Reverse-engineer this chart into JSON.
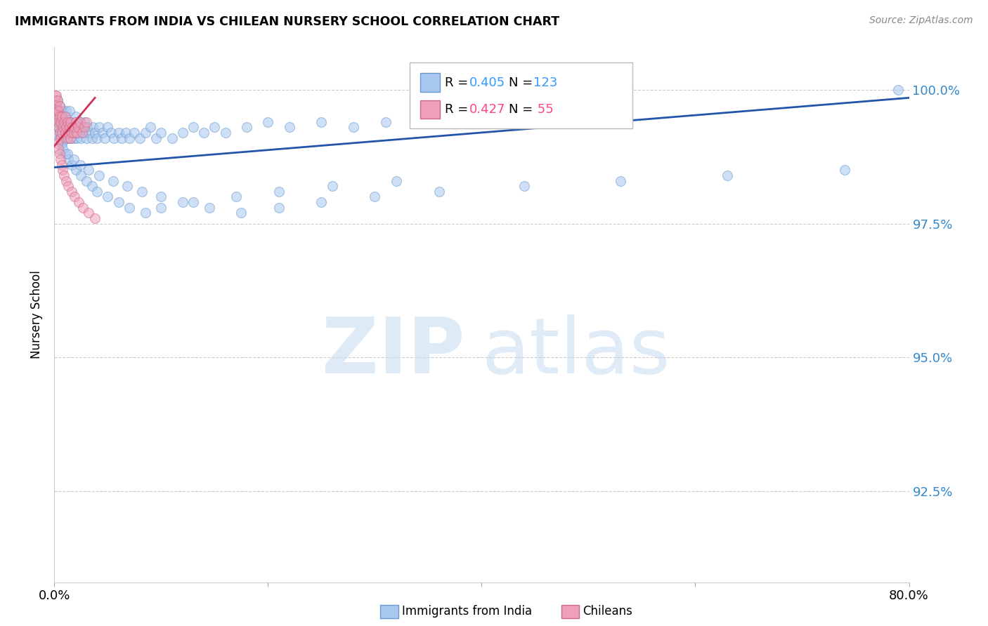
{
  "title": "IMMIGRANTS FROM INDIA VS CHILEAN NURSERY SCHOOL CORRELATION CHART",
  "source": "Source: ZipAtlas.com",
  "ylabel": "Nursery School",
  "ytick_labels": [
    "100.0%",
    "97.5%",
    "95.0%",
    "92.5%"
  ],
  "ytick_values": [
    1.0,
    0.975,
    0.95,
    0.925
  ],
  "xlim": [
    0.0,
    0.8
  ],
  "ylim": [
    0.908,
    1.008
  ],
  "blue_color": "#a8c8f0",
  "pink_color": "#f0a0b8",
  "blue_edge_color": "#6699cc",
  "pink_edge_color": "#cc6688",
  "blue_line_color": "#2255aa",
  "pink_line_color": "#cc3355",
  "legend_text_blue": "#3399ff",
  "legend_text_pink": "#ff4488",
  "background_color": "#ffffff",
  "grid_color": "#cccccc",
  "right_axis_label_color": "#3388cc",
  "scatter_alpha": 0.55,
  "scatter_size": 100,
  "blue_x": [
    0.001,
    0.001,
    0.002,
    0.002,
    0.003,
    0.003,
    0.003,
    0.004,
    0.004,
    0.005,
    0.005,
    0.005,
    0.006,
    0.006,
    0.007,
    0.007,
    0.008,
    0.008,
    0.009,
    0.009,
    0.01,
    0.01,
    0.011,
    0.011,
    0.012,
    0.012,
    0.013,
    0.014,
    0.014,
    0.015,
    0.015,
    0.016,
    0.017,
    0.018,
    0.019,
    0.02,
    0.02,
    0.021,
    0.022,
    0.023,
    0.024,
    0.025,
    0.026,
    0.027,
    0.028,
    0.03,
    0.031,
    0.033,
    0.035,
    0.036,
    0.038,
    0.04,
    0.042,
    0.045,
    0.047,
    0.05,
    0.053,
    0.056,
    0.06,
    0.063,
    0.067,
    0.07,
    0.075,
    0.08,
    0.085,
    0.09,
    0.095,
    0.1,
    0.11,
    0.12,
    0.13,
    0.14,
    0.15,
    0.16,
    0.18,
    0.2,
    0.22,
    0.25,
    0.28,
    0.31,
    0.34,
    0.37,
    0.4,
    0.007,
    0.01,
    0.013,
    0.016,
    0.02,
    0.025,
    0.03,
    0.035,
    0.04,
    0.05,
    0.06,
    0.07,
    0.085,
    0.1,
    0.13,
    0.17,
    0.21,
    0.26,
    0.32,
    0.008,
    0.012,
    0.018,
    0.024,
    0.032,
    0.042,
    0.055,
    0.068,
    0.082,
    0.1,
    0.12,
    0.145,
    0.175,
    0.21,
    0.25,
    0.3,
    0.36,
    0.44,
    0.53,
    0.63,
    0.74,
    0.79
  ],
  "blue_y": [
    0.993,
    0.996,
    0.994,
    0.997,
    0.992,
    0.995,
    0.998,
    0.993,
    0.996,
    0.991,
    0.994,
    0.997,
    0.992,
    0.995,
    0.99,
    0.994,
    0.993,
    0.996,
    0.991,
    0.994,
    0.992,
    0.995,
    0.993,
    0.996,
    0.991,
    0.994,
    0.992,
    0.993,
    0.996,
    0.991,
    0.994,
    0.992,
    0.993,
    0.991,
    0.994,
    0.992,
    0.995,
    0.991,
    0.993,
    0.992,
    0.994,
    0.991,
    0.993,
    0.992,
    0.994,
    0.991,
    0.993,
    0.992,
    0.991,
    0.993,
    0.992,
    0.991,
    0.993,
    0.992,
    0.991,
    0.993,
    0.992,
    0.991,
    0.992,
    0.991,
    0.992,
    0.991,
    0.992,
    0.991,
    0.992,
    0.993,
    0.991,
    0.992,
    0.991,
    0.992,
    0.993,
    0.992,
    0.993,
    0.992,
    0.993,
    0.994,
    0.993,
    0.994,
    0.993,
    0.994,
    0.995,
    0.994,
    0.995,
    0.99,
    0.988,
    0.987,
    0.986,
    0.985,
    0.984,
    0.983,
    0.982,
    0.981,
    0.98,
    0.979,
    0.978,
    0.977,
    0.978,
    0.979,
    0.98,
    0.981,
    0.982,
    0.983,
    0.989,
    0.988,
    0.987,
    0.986,
    0.985,
    0.984,
    0.983,
    0.982,
    0.981,
    0.98,
    0.979,
    0.978,
    0.977,
    0.978,
    0.979,
    0.98,
    0.981,
    0.982,
    0.983,
    0.984,
    0.985,
    1.0
  ],
  "pink_x": [
    0.001,
    0.001,
    0.001,
    0.002,
    0.002,
    0.002,
    0.003,
    0.003,
    0.003,
    0.004,
    0.004,
    0.005,
    0.005,
    0.005,
    0.006,
    0.006,
    0.007,
    0.007,
    0.008,
    0.009,
    0.01,
    0.01,
    0.011,
    0.012,
    0.012,
    0.013,
    0.014,
    0.015,
    0.015,
    0.016,
    0.017,
    0.018,
    0.019,
    0.02,
    0.021,
    0.022,
    0.024,
    0.026,
    0.028,
    0.03,
    0.003,
    0.004,
    0.005,
    0.006,
    0.007,
    0.008,
    0.009,
    0.011,
    0.013,
    0.016,
    0.019,
    0.023,
    0.027,
    0.032,
    0.038
  ],
  "pink_y": [
    0.996,
    0.998,
    0.999,
    0.995,
    0.997,
    0.999,
    0.994,
    0.996,
    0.998,
    0.993,
    0.996,
    0.992,
    0.995,
    0.997,
    0.991,
    0.994,
    0.992,
    0.995,
    0.993,
    0.994,
    0.992,
    0.995,
    0.993,
    0.991,
    0.994,
    0.992,
    0.993,
    0.991,
    0.994,
    0.992,
    0.993,
    0.992,
    0.993,
    0.994,
    0.992,
    0.993,
    0.994,
    0.992,
    0.993,
    0.994,
    0.99,
    0.989,
    0.988,
    0.987,
    0.986,
    0.985,
    0.984,
    0.983,
    0.982,
    0.981,
    0.98,
    0.979,
    0.978,
    0.977,
    0.976
  ],
  "blue_line_x": [
    0.0,
    0.8
  ],
  "blue_line_y": [
    0.9855,
    0.9985
  ],
  "pink_line_x": [
    0.0,
    0.038
  ],
  "pink_line_y": [
    0.9895,
    0.9985
  ]
}
